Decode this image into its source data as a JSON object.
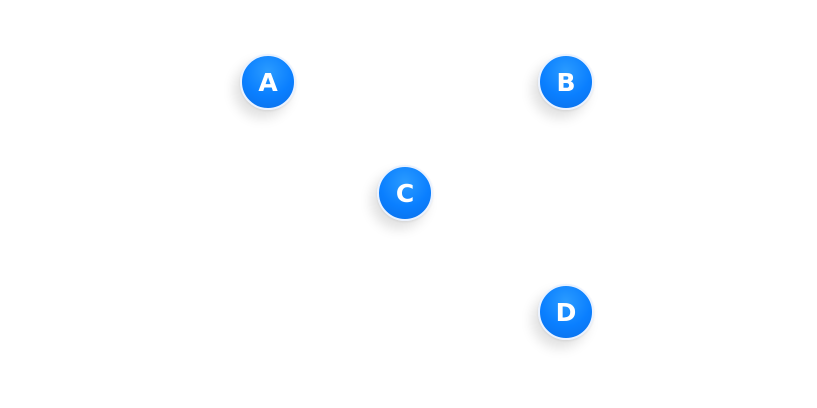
{
  "graph": {
    "nodes": [
      {
        "label": "A"
      },
      {
        "label": "B"
      },
      {
        "label": "C"
      },
      {
        "label": "D"
      }
    ]
  },
  "colors": {
    "node_fill": "#0a7fff",
    "node_border": "#eaf2ff",
    "node_text": "#ffffff",
    "background": "#ffffff"
  }
}
